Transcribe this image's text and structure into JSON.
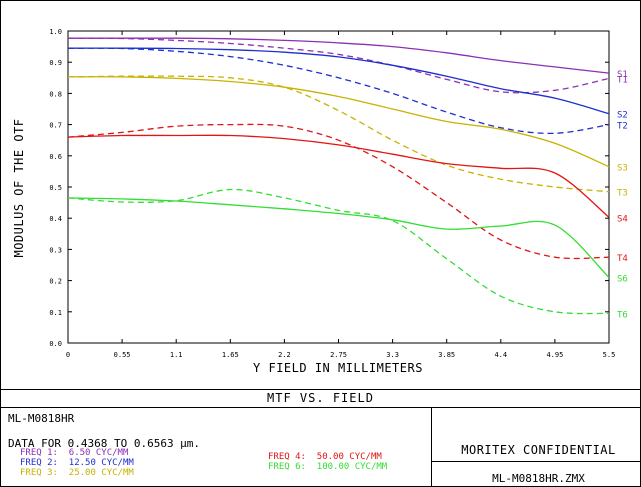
{
  "chart_data": {
    "type": "line",
    "title": "MTF VS. FIELD",
    "xlabel": "Y FIELD IN MILLIMETERS",
    "ylabel": "MODULUS OF THE OTF",
    "xlim": [
      0,
      5.5
    ],
    "ylim": [
      0,
      1.0
    ],
    "x_ticks": [
      "0",
      "0.55",
      "1.1",
      "1.65",
      "2.2",
      "2.75",
      "3.3",
      "3.85",
      "4.4",
      "4.95",
      "5.5"
    ],
    "y_ticks": [
      "0.0",
      "0.1",
      "0.2",
      "0.3",
      "0.4",
      "0.5",
      "0.6",
      "0.7",
      "0.8",
      "0.9",
      "1.0"
    ],
    "grid": false,
    "x": [
      0,
      0.55,
      1.1,
      1.65,
      2.2,
      2.75,
      3.3,
      3.85,
      4.4,
      4.95,
      5.5
    ],
    "series": [
      {
        "name": "S1",
        "color": "#8b2fb5",
        "dash": false,
        "values": [
          0.977,
          0.977,
          0.977,
          0.975,
          0.97,
          0.962,
          0.95,
          0.93,
          0.905,
          0.885,
          0.865
        ]
      },
      {
        "name": "T1",
        "color": "#8b2fb5",
        "dash": true,
        "values": [
          0.977,
          0.976,
          0.97,
          0.96,
          0.945,
          0.925,
          0.89,
          0.845,
          0.805,
          0.81,
          0.848
        ]
      },
      {
        "name": "S2",
        "color": "#1c2fd0",
        "dash": false,
        "values": [
          0.945,
          0.945,
          0.944,
          0.94,
          0.932,
          0.917,
          0.89,
          0.855,
          0.815,
          0.785,
          0.735
        ]
      },
      {
        "name": "T2",
        "color": "#1c2fd0",
        "dash": true,
        "values": [
          0.945,
          0.944,
          0.935,
          0.918,
          0.89,
          0.85,
          0.8,
          0.74,
          0.69,
          0.672,
          0.7
        ]
      },
      {
        "name": "S3",
        "color": "#c9b200",
        "dash": false,
        "values": [
          0.853,
          0.853,
          0.848,
          0.838,
          0.82,
          0.79,
          0.75,
          0.71,
          0.685,
          0.64,
          0.565
        ]
      },
      {
        "name": "T3",
        "color": "#c9b200",
        "dash": true,
        "values": [
          0.853,
          0.855,
          0.855,
          0.85,
          0.82,
          0.745,
          0.65,
          0.57,
          0.525,
          0.5,
          0.485
        ]
      },
      {
        "name": "S4",
        "color": "#e01515",
        "dash": false,
        "values": [
          0.66,
          0.665,
          0.665,
          0.665,
          0.655,
          0.635,
          0.605,
          0.575,
          0.56,
          0.545,
          0.403
        ]
      },
      {
        "name": "T4",
        "color": "#e01515",
        "dash": true,
        "values": [
          0.66,
          0.675,
          0.695,
          0.7,
          0.695,
          0.65,
          0.565,
          0.45,
          0.33,
          0.275,
          0.275
        ]
      },
      {
        "name": "S6",
        "color": "#33dd33",
        "dash": false,
        "values": [
          0.465,
          0.462,
          0.455,
          0.443,
          0.43,
          0.415,
          0.395,
          0.365,
          0.375,
          0.378,
          0.21
        ]
      },
      {
        "name": "T6",
        "color": "#33dd33",
        "dash": true,
        "values": [
          0.465,
          0.452,
          0.456,
          0.492,
          0.465,
          0.425,
          0.392,
          0.27,
          0.15,
          0.1,
          0.095
        ]
      }
    ]
  },
  "title_block": {
    "lens_name": "ML-M0818HR",
    "data_line": "DATA FOR 0.4368 TO 0.6563 µm.",
    "freqs_left": [
      {
        "label": "FREQ 1:",
        "value": "6.50 CYC/MM",
        "color": "#8b2fb5"
      },
      {
        "label": "FREQ 2:",
        "value": "12.50 CYC/MM",
        "color": "#1c2fd0"
      },
      {
        "label": "FREQ 3:",
        "value": "25.00 CYC/MM",
        "color": "#c9b200"
      }
    ],
    "freqs_right": [
      {
        "label": "FREQ 4:",
        "value": "50.00 CYC/MM",
        "color": "#e01515"
      },
      {
        "label": "FREQ 6:",
        "value": "100.00 CYC/MM",
        "color": "#33dd33"
      }
    ],
    "confidential": "MORITEX CONFIDENTIAL",
    "file_name": "ML-M0818HR.ZMX"
  }
}
